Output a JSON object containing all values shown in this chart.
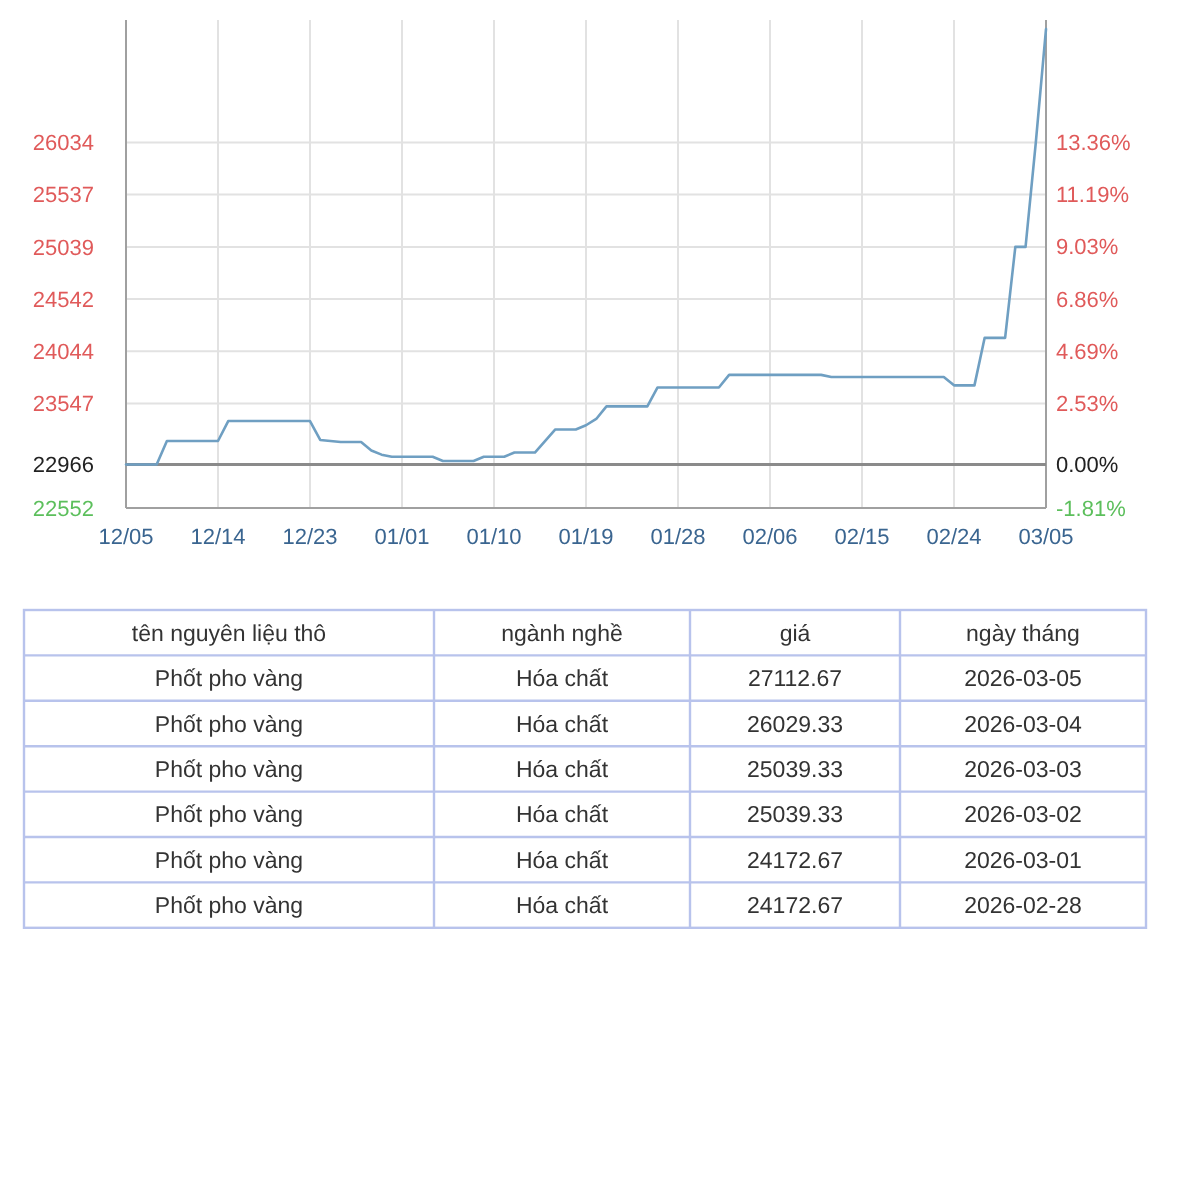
{
  "chart_data": [
    {
      "type": "line",
      "x": [
        "2025-12-05",
        "2025-12-08",
        "2025-12-09",
        "2025-12-14",
        "2025-12-15",
        "2025-12-23",
        "2025-12-24",
        "2025-12-26",
        "2025-12-28",
        "2025-12-29",
        "2025-12-30",
        "2025-12-31",
        "2026-01-04",
        "2026-01-05",
        "2026-01-08",
        "2026-01-09",
        "2026-01-11",
        "2026-01-12",
        "2026-01-14",
        "2026-01-16",
        "2026-01-18",
        "2026-01-19",
        "2026-01-20",
        "2026-01-21",
        "2026-01-25",
        "2026-01-26",
        "2026-02-01",
        "2026-02-02",
        "2026-02-11",
        "2026-02-12",
        "2026-02-23",
        "2026-02-24",
        "2026-02-26",
        "2026-02-27",
        "2026-02-28",
        "2026-03-01",
        "2026-03-02",
        "2026-03-03",
        "2026-03-04",
        "2026-03-05"
      ],
      "series": [
        {
          "color": "#6f9fc2",
          "values": [
            22966,
            22966,
            23190,
            23190,
            23380,
            23380,
            23200,
            23180,
            23180,
            23100,
            23060,
            23040,
            23040,
            23000,
            23000,
            23040,
            23040,
            23080,
            23080,
            23300,
            23300,
            23340,
            23400,
            23520,
            23520,
            23700,
            23700,
            23820,
            23820,
            23800,
            23800,
            23720,
            23720,
            24172.67,
            24172.67,
            24172.67,
            25039.33,
            25039.33,
            26029.33,
            27112.67
          ]
        }
      ],
      "xlim": [
        "2025-12-05",
        "2026-03-05"
      ],
      "xticks": [
        {
          "value": "2025-12-05",
          "label": "12/05"
        },
        {
          "value": "2025-12-14",
          "label": "12/14"
        },
        {
          "value": "2025-12-23",
          "label": "12/23"
        },
        {
          "value": "2026-01-01",
          "label": "01/01"
        },
        {
          "value": "2026-01-10",
          "label": "01/10"
        },
        {
          "value": "2026-01-19",
          "label": "01/19"
        },
        {
          "value": "2026-01-28",
          "label": "01/28"
        },
        {
          "value": "2026-02-06",
          "label": "02/06"
        },
        {
          "value": "2026-02-15",
          "label": "02/15"
        },
        {
          "value": "2026-02-24",
          "label": "02/24"
        },
        {
          "value": "2026-03-05",
          "label": "03/05"
        }
      ],
      "ylim": [
        22552,
        27200
      ],
      "yticks": [
        22552,
        22966,
        23547,
        24044,
        24542,
        25039,
        25537,
        26034
      ],
      "y2lim": [
        -1.81,
        18.44
      ],
      "y2ticks": [
        {
          "value": -1.81,
          "label": "-1.81%"
        },
        {
          "value": 0,
          "label": "0.00%"
        },
        {
          "value": 2.53,
          "label": "2.53%"
        },
        {
          "value": 4.69,
          "label": "4.69%"
        },
        {
          "value": 6.86,
          "label": "6.86%"
        },
        {
          "value": 9.03,
          "label": "9.03%"
        },
        {
          "value": 11.19,
          "label": "11.19%"
        },
        {
          "value": 13.36,
          "label": "13.36%"
        }
      ],
      "ref_lines": [
        {
          "axis": "y",
          "value": 22966,
          "color": "#8a8a8a"
        }
      ],
      "grid": true
    },
    {
      "type": "other",
      "categories": [
        "tên nguyên liệu thô",
        "ngành nghề",
        "giá",
        "ngày tháng"
      ],
      "cell_labels": [
        [
          "Phốt pho vàng",
          "Hóa chất",
          "27112.67",
          "2026-03-05"
        ],
        [
          "Phốt pho vàng",
          "Hóa chất",
          "26029.33",
          "2026-03-04"
        ],
        [
          "Phốt pho vàng",
          "Hóa chất",
          "25039.33",
          "2026-03-03"
        ],
        [
          "Phốt pho vàng",
          "Hóa chất",
          "25039.33",
          "2026-03-02"
        ],
        [
          "Phốt pho vàng",
          "Hóa chất",
          "24172.67",
          "2026-03-01"
        ],
        [
          "Phốt pho vàng",
          "Hóa chất",
          "24172.67",
          "2026-02-28"
        ]
      ]
    }
  ]
}
